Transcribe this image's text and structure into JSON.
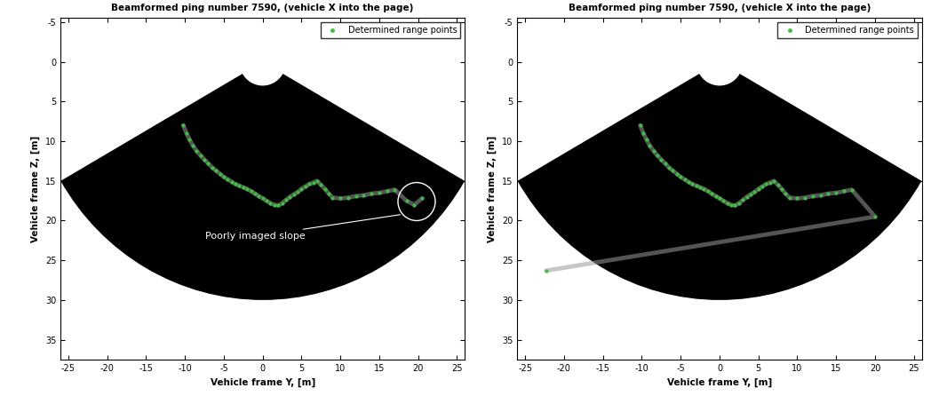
{
  "chart_data": [
    {
      "type": "scatter",
      "title": "Beamformed ping number 7590, (vehicle X into the page)",
      "x_label": "Vehicle frame Y, [m]",
      "y_label": "Vehicle frame Z, [m]",
      "xlim": [
        -26,
        26
      ],
      "ylim": [
        37.5,
        -5.5
      ],
      "xticks": [
        -25,
        -20,
        -15,
        -10,
        -5,
        0,
        5,
        10,
        15,
        20,
        25
      ],
      "yticks": [
        -5,
        0,
        5,
        10,
        15,
        20,
        25,
        30,
        35
      ],
      "legend": "upper right",
      "sector": {
        "range": 30,
        "inner_range": 3,
        "half_angle": 60
      },
      "series": [
        {
          "name": "Determined range points",
          "color": "#3fbf3f",
          "marker": "dot",
          "x": [
            -10.2,
            -9.8,
            -9.4,
            -9,
            -8.5,
            -8,
            -7.5,
            -7,
            -6.5,
            -6,
            -5.5,
            -5,
            -4.5,
            -4,
            -3.5,
            -3,
            -2.5,
            -2,
            -1.5,
            -1,
            -0.5,
            0,
            0.5,
            1,
            1.5,
            2,
            2.5,
            3,
            3.5,
            4,
            4.5,
            5,
            5.5,
            6,
            6.5,
            7,
            7.5,
            8,
            8.5,
            9,
            10,
            11,
            12,
            13,
            14,
            15,
            16,
            17,
            18.5,
            19.5,
            20.5
          ],
          "values": [
            8,
            9,
            9.8,
            10.5,
            11.2,
            11.8,
            12.3,
            12.8,
            13.3,
            13.7,
            14.1,
            14.5,
            14.8,
            15.1,
            15.4,
            15.6,
            15.8,
            16,
            16.3,
            16.6,
            16.9,
            17.2,
            17.5,
            17.8,
            18,
            18.1,
            17.8,
            17.4,
            17,
            16.7,
            16.4,
            16,
            15.7,
            15.4,
            15.2,
            15,
            15.5,
            16,
            16.6,
            17.1,
            17.2,
            17.1,
            16.9,
            16.8,
            16.6,
            16.5,
            16.3,
            16.1,
            17.5,
            18,
            17.2
          ]
        }
      ],
      "annotations": [
        {
          "text": "Poorly imaged slope",
          "x": 19.8,
          "y": 17.6
        }
      ]
    },
    {
      "type": "scatter",
      "title": "Beamformed ping number 7590, (vehicle X into the page)",
      "x_label": "Vehicle frame Y, [m]",
      "y_label": "Vehicle frame Z, [m]",
      "xlim": [
        -26,
        26
      ],
      "ylim": [
        37.5,
        -5.5
      ],
      "xticks": [
        -25,
        -20,
        -15,
        -10,
        -5,
        0,
        5,
        10,
        15,
        20,
        25
      ],
      "yticks": [
        -5,
        0,
        5,
        10,
        15,
        20,
        25,
        30,
        35
      ],
      "legend": "upper right",
      "sector": {
        "range": 30,
        "inner_range": 3,
        "half_angle": 60
      },
      "series": [
        {
          "name": "Determined range points",
          "color": "#3fbf3f",
          "marker": "dot",
          "x": [
            -10.2,
            -9.8,
            -9.4,
            -9,
            -8.5,
            -8,
            -7.5,
            -7,
            -6.5,
            -6,
            -5.5,
            -5,
            -4.5,
            -4,
            -3.5,
            -3,
            -2.5,
            -2,
            -1.5,
            -1,
            -0.5,
            0,
            0.5,
            1,
            1.5,
            2,
            2.5,
            3,
            3.5,
            4,
            4.5,
            5,
            5.5,
            6,
            6.5,
            7,
            7.5,
            8,
            8.5,
            9,
            10,
            11,
            12,
            13,
            14,
            15,
            16,
            17,
            20,
            -22.3
          ],
          "values": [
            8,
            9,
            9.8,
            10.5,
            11.2,
            11.8,
            12.3,
            12.8,
            13.3,
            13.7,
            14.1,
            14.5,
            14.8,
            15.1,
            15.4,
            15.6,
            15.8,
            16,
            16.3,
            16.6,
            16.9,
            17.2,
            17.5,
            17.8,
            18,
            18.1,
            17.8,
            17.4,
            17,
            16.7,
            16.4,
            16,
            15.7,
            15.4,
            15.2,
            15,
            15.5,
            16,
            16.6,
            17.1,
            17.2,
            17.1,
            16.9,
            16.8,
            16.6,
            16.5,
            16.3,
            16.1,
            19.5,
            26.3
          ]
        }
      ],
      "annotations": []
    }
  ]
}
